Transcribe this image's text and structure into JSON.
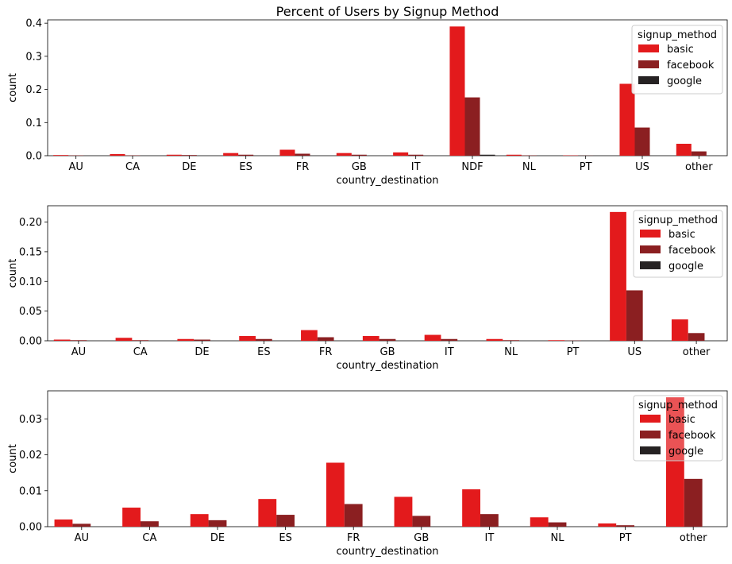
{
  "figure": {
    "title": "Percent of Users by Signup Method"
  },
  "palette": {
    "basic": "#e31a1c",
    "facebook": "#8b1f21",
    "google": "#262223"
  },
  "chart_data": [
    {
      "type": "bar",
      "title": "Percent of Users by Signup Method",
      "xlabel": "country_destination",
      "ylabel": "count",
      "ylim": [
        0,
        0.41
      ],
      "yticks": [
        0.0,
        0.1,
        0.2,
        0.3,
        0.4
      ],
      "yticklabels": [
        "0.0",
        "0.1",
        "0.2",
        "0.3",
        "0.4"
      ],
      "grid": false,
      "legend": {
        "title": "signup_method",
        "placement": "top-right",
        "opaque": true
      },
      "categories": [
        "AU",
        "CA",
        "DE",
        "ES",
        "FR",
        "GB",
        "IT",
        "NDF",
        "NL",
        "PT",
        "US",
        "other"
      ],
      "series": [
        {
          "name": "basic",
          "values": [
            0.002,
            0.005,
            0.003,
            0.008,
            0.018,
            0.008,
            0.01,
            0.39,
            0.003,
            0.001,
            0.217,
            0.036
          ]
        },
        {
          "name": "facebook",
          "values": [
            0.001,
            0.001,
            0.002,
            0.003,
            0.006,
            0.003,
            0.003,
            0.176,
            0.001,
            0.0004,
            0.085,
            0.013
          ]
        },
        {
          "name": "google",
          "values": [
            0,
            0,
            0,
            0,
            0,
            0,
            0,
            0.003,
            0,
            0,
            0,
            0
          ]
        }
      ]
    },
    {
      "type": "bar",
      "title": "",
      "xlabel": "country_destination",
      "ylabel": "count",
      "ylim": [
        0,
        0.2275
      ],
      "yticks": [
        0.0,
        0.05,
        0.1,
        0.15,
        0.2
      ],
      "yticklabels": [
        "0.00",
        "0.05",
        "0.10",
        "0.15",
        "0.20"
      ],
      "grid": false,
      "legend": {
        "title": "signup_method",
        "placement": "top-right",
        "opaque": true
      },
      "categories": [
        "AU",
        "CA",
        "DE",
        "ES",
        "FR",
        "GB",
        "IT",
        "NL",
        "PT",
        "US",
        "other"
      ],
      "series": [
        {
          "name": "basic",
          "values": [
            0.002,
            0.005,
            0.003,
            0.008,
            0.018,
            0.008,
            0.01,
            0.003,
            0.001,
            0.217,
            0.036
          ]
        },
        {
          "name": "facebook",
          "values": [
            0.001,
            0.001,
            0.002,
            0.003,
            0.006,
            0.003,
            0.003,
            0.001,
            0.0004,
            0.085,
            0.013
          ]
        },
        {
          "name": "google",
          "values": [
            0,
            0,
            0,
            0,
            0,
            0,
            0,
            0,
            0,
            0,
            0
          ]
        }
      ]
    },
    {
      "type": "bar",
      "title": "",
      "xlabel": "country_destination",
      "ylabel": "count",
      "ylim": [
        0,
        0.0378
      ],
      "yticks": [
        0.0,
        0.01,
        0.02,
        0.03
      ],
      "yticklabels": [
        "0.00",
        "0.01",
        "0.02",
        "0.03"
      ],
      "grid": false,
      "legend": {
        "title": "signup_method",
        "placement": "top-right",
        "opaque": false
      },
      "categories": [
        "AU",
        "CA",
        "DE",
        "ES",
        "FR",
        "GB",
        "IT",
        "NL",
        "PT",
        "other"
      ],
      "series": [
        {
          "name": "basic",
          "values": [
            0.002,
            0.0053,
            0.0035,
            0.0077,
            0.0178,
            0.0083,
            0.0104,
            0.0026,
            0.0009,
            0.036
          ]
        },
        {
          "name": "facebook",
          "values": [
            0.0008,
            0.0015,
            0.0018,
            0.0033,
            0.0063,
            0.003,
            0.0035,
            0.0012,
            0.0004,
            0.0133
          ]
        },
        {
          "name": "google",
          "values": [
            0,
            0,
            0,
            0,
            0,
            0,
            0,
            0,
            0,
            0
          ]
        }
      ]
    }
  ]
}
